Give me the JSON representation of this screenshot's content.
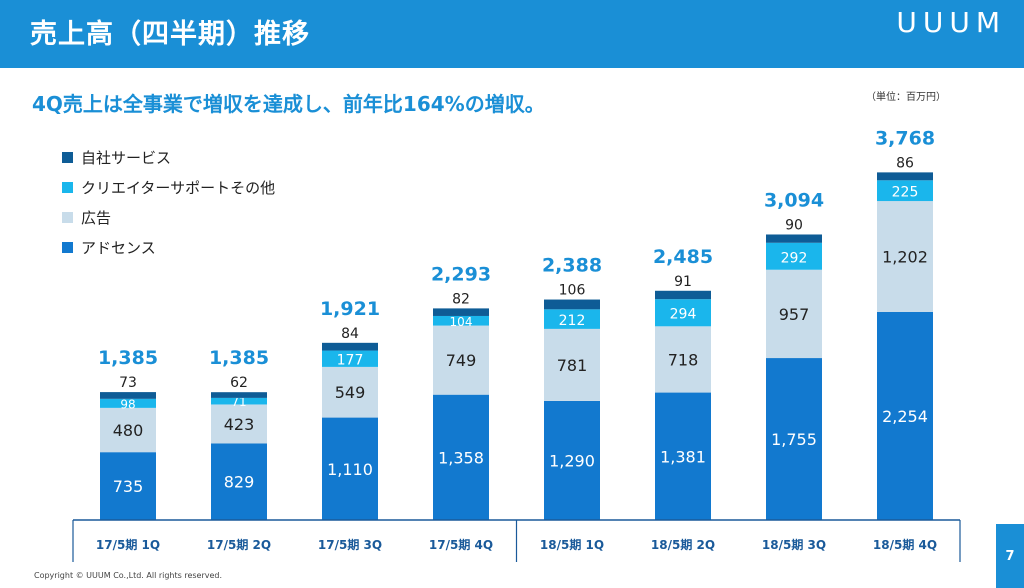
{
  "header": {
    "title": "売上高（四半期）推移",
    "logo": "UUUM"
  },
  "subtitle": "4Q売上は全事業で増収を達成し、前年比164%の増収。",
  "unit_note": "（単位：百万円）",
  "footer": {
    "copyright": "Copyright © UUUM Co.,Ltd. All rights reserved.",
    "page": "7"
  },
  "colors": {
    "header": "#1a8fd6",
    "self_service": "#0e5c96",
    "creator_support": "#1ab6ec",
    "advertising": "#c8dcea",
    "adsense": "#1279cf",
    "total_label": "#1a8fd6"
  },
  "chart_data": {
    "type": "bar",
    "stacked": true,
    "title": "",
    "xlabel": "",
    "ylabel": "",
    "ylim": [
      0,
      4000
    ],
    "grid": false,
    "legend_position": "top-left",
    "categories": [
      "17/5期 1Q",
      "17/5期 2Q",
      "17/5期 3Q",
      "17/5期 4Q",
      "18/5期 1Q",
      "18/5期 2Q",
      "18/5期 3Q",
      "18/5期 4Q"
    ],
    "series": [
      {
        "name": "アドセンス",
        "color": "#1279cf",
        "values": [
          735,
          829,
          1110,
          1358,
          1290,
          1381,
          1755,
          2254
        ]
      },
      {
        "name": "広告",
        "color": "#c8dcea",
        "values": [
          480,
          423,
          549,
          749,
          781,
          718,
          957,
          1202
        ]
      },
      {
        "name": "クリエイターサポートその他",
        "color": "#1ab6ec",
        "values": [
          98,
          71,
          177,
          104,
          212,
          294,
          292,
          225
        ]
      },
      {
        "name": "自社サービス",
        "color": "#0e5c96",
        "values": [
          73,
          62,
          84,
          82,
          106,
          91,
          90,
          86
        ]
      }
    ],
    "legend_order": [
      "自社サービス",
      "クリエイターサポートその他",
      "広告",
      "アドセンス"
    ],
    "totals": [
      1385,
      1385,
      1921,
      2293,
      2388,
      2485,
      3094,
      3768
    ]
  }
}
